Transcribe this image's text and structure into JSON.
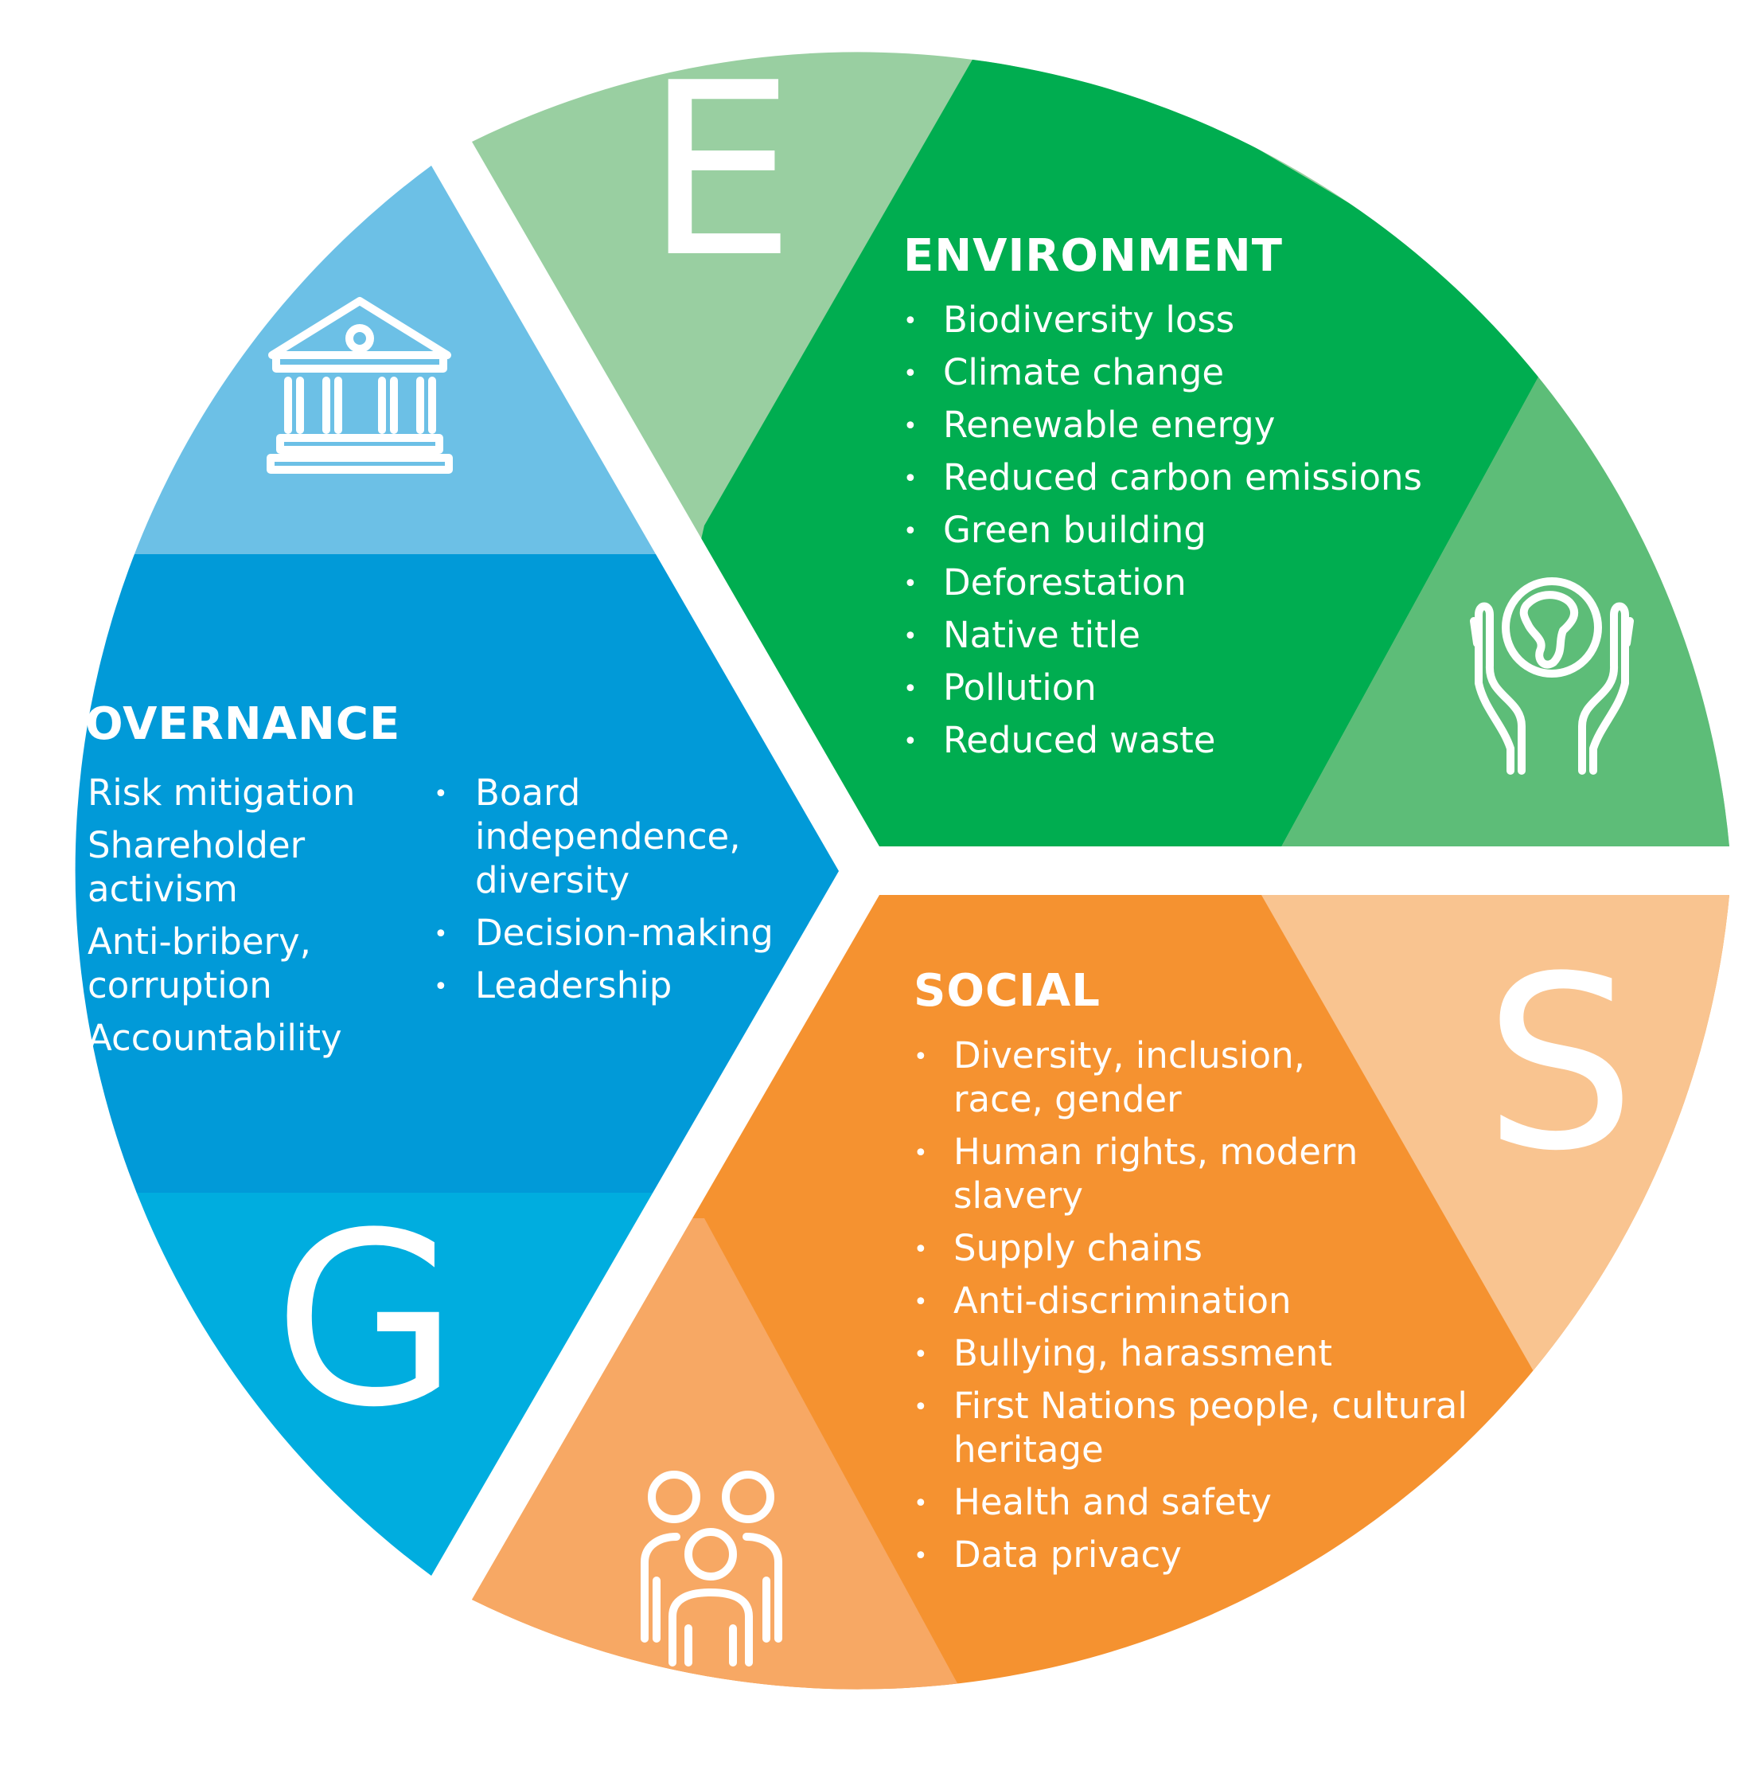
{
  "colors": {
    "env_light": "#99cfa1",
    "env_main": "#00ad50",
    "env_mid": "#5dbd78",
    "soc_main": "#f59230",
    "soc_light": "#f9c490",
    "soc_mid": "#f7a864",
    "gov_light": "#6cc0e6",
    "gov_main": "#019ad8",
    "gov_cyan": "#00addf",
    "text": "#ffffff"
  },
  "environment": {
    "letter": "E",
    "title": "ENVIRONMENT",
    "icon": "hands-globe-icon",
    "items": [
      "Biodiversity loss",
      "Climate change",
      "Renewable energy",
      "Reduced carbon emissions",
      "Green building",
      "Deforestation",
      "Native title",
      "Pollution",
      "Reduced waste"
    ]
  },
  "social": {
    "letter": "S",
    "title": "SOCIAL",
    "icon": "people-group-icon",
    "items": [
      [
        "Diversity, inclusion,",
        "race, gender"
      ],
      [
        "Human rights, modern",
        "slavery"
      ],
      [
        "Supply chains"
      ],
      [
        "Anti-discrimination"
      ],
      [
        "Bullying, harassment"
      ],
      [
        "First Nations people, cultural",
        "heritage"
      ],
      [
        "Health and safety"
      ],
      [
        "Data privacy"
      ]
    ]
  },
  "governance": {
    "letter": "G",
    "title": "GOVERNANCE",
    "icon": "institution-building-icon",
    "col1": [
      [
        "Risk mitigation"
      ],
      [
        "Shareholder",
        "activism"
      ],
      [
        "Anti-bribery,",
        "corruption"
      ],
      [
        "Accountability"
      ]
    ],
    "col2": [
      [
        "Board",
        "independence,",
        "diversity"
      ],
      [
        "Decision-making"
      ],
      [
        "Leadership"
      ]
    ]
  }
}
